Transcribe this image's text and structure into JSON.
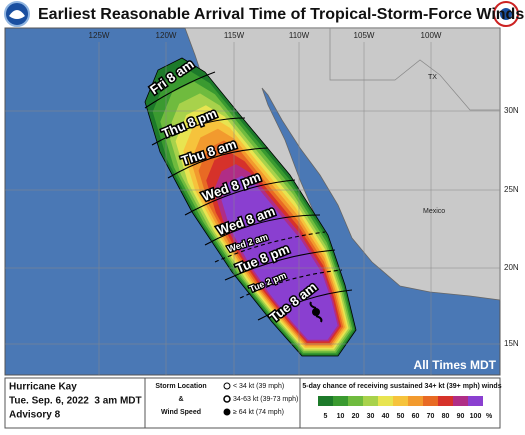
{
  "header": {
    "title": "Earliest Reasonable Arrival Time of Tropical-Storm-Force Winds"
  },
  "map": {
    "longitude_labels": [
      "125W",
      "120W",
      "115W",
      "110W",
      "105W",
      "100W"
    ],
    "latitude_labels": [
      "30N",
      "25N",
      "20N",
      "15N"
    ],
    "place_labels": [
      "TX",
      "Mexico"
    ],
    "time_labels": [
      "Fri 8 am",
      "Thu 8 pm",
      "Thu 8 am",
      "Wed 8 pm",
      "Wed 8 am",
      "Wed 2 am",
      "Tue 8 pm",
      "Tue 2 pm",
      "Tue 8 am"
    ],
    "note": "All Times MDT"
  },
  "legend": {
    "storm": [
      "Hurricane Kay",
      "Tue. Sep. 6, 2022  3 am MDT",
      "Advisory 8"
    ],
    "symbol_title": [
      "Storm Location",
      "&",
      "Wind Speed"
    ],
    "symbols": [
      "< 34 kt (39 mph)",
      "34-63 kt (39-73 mph)",
      "≥ 64 kt (74 mph)"
    ],
    "scale_title": "5-day chance of receiving sustained 34+ kt (39+ mph) winds",
    "scale": {
      "labels": [
        5,
        10,
        20,
        30,
        40,
        50,
        60,
        70,
        80,
        90,
        100
      ],
      "unit": "%",
      "colors": [
        "#1d7a2a",
        "#3a9a30",
        "#6fbb3e",
        "#a8d24b",
        "#e8e450",
        "#f6c33c",
        "#f29a2e",
        "#e86a24",
        "#d6322a",
        "#b02d86",
        "#8a3fd0"
      ]
    }
  }
}
